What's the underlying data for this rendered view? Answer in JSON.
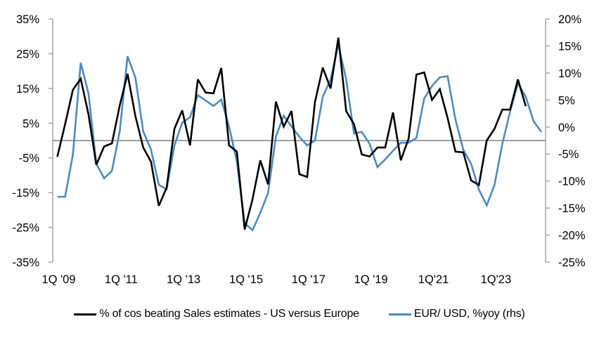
{
  "chart_data": {
    "type": "line",
    "title": "",
    "xlabel": "",
    "ylabel": "",
    "y2label": "",
    "grid": false,
    "legend_position": "bottom",
    "x_tick_labels": [
      "1Q '09",
      "1Q '11",
      "1Q '13",
      "1Q '15",
      "1Q '17",
      "1Q '19",
      "1Q'21",
      "1Q'23"
    ],
    "left_axis": {
      "ylim": [
        -35,
        35
      ],
      "ticks": [
        35,
        25,
        15,
        5,
        -5,
        -15,
        -25,
        -35
      ],
      "tick_labels": [
        "35%",
        "25%",
        "15%",
        "5%",
        "-5%",
        "-15%",
        "-25%",
        "-35%"
      ]
    },
    "right_axis": {
      "ylim": [
        -25,
        20
      ],
      "ticks": [
        20,
        15,
        10,
        5,
        0,
        -5,
        -10,
        -15,
        -20,
        -25
      ],
      "tick_labels": [
        "20%",
        "15%",
        "10%",
        "5%",
        "0%",
        "-5%",
        "-10%",
        "-15%",
        "-20%",
        "-25%"
      ]
    },
    "reference_line": {
      "axis": "left",
      "value": 0,
      "color": "#808080"
    },
    "x": [
      "1Q09",
      "2Q09",
      "3Q09",
      "4Q09",
      "1Q10",
      "2Q10",
      "3Q10",
      "4Q10",
      "1Q11",
      "2Q11",
      "3Q11",
      "4Q11",
      "1Q12",
      "2Q12",
      "3Q12",
      "4Q12",
      "1Q13",
      "2Q13",
      "3Q13",
      "4Q13",
      "1Q14",
      "2Q14",
      "3Q14",
      "4Q14",
      "1Q15",
      "2Q15",
      "3Q15",
      "4Q15",
      "1Q16",
      "2Q16",
      "3Q16",
      "4Q16",
      "1Q17",
      "2Q17",
      "3Q17",
      "4Q17",
      "1Q18",
      "2Q18",
      "3Q18",
      "4Q18",
      "1Q19",
      "2Q19",
      "3Q19",
      "4Q19",
      "1Q20",
      "2Q20",
      "3Q20",
      "4Q20",
      "1Q21",
      "2Q21",
      "3Q21",
      "4Q21",
      "1Q22",
      "2Q22",
      "3Q22",
      "4Q22",
      "1Q23",
      "2Q23",
      "3Q23",
      "4Q23",
      "1Q24",
      "2Q24",
      "3Q24"
    ],
    "series": [
      {
        "name": "% of cos beating Sales estimates - US versus Europe",
        "axis": "left",
        "color": "#000000",
        "values": [
          -4.7,
          4.7,
          14.6,
          17.8,
          7.5,
          -7.0,
          -1.7,
          -0.8,
          10.1,
          19.2,
          7.1,
          -2.0,
          -6.1,
          -18.8,
          -13.6,
          3.4,
          8.7,
          -1.4,
          17.6,
          13.8,
          13.6,
          20.9,
          -1.4,
          -3.2,
          -25.6,
          -17.0,
          -5.7,
          -12.6,
          11.2,
          4.0,
          8.5,
          -9.7,
          -10.5,
          11.1,
          21.0,
          15.0,
          29.6,
          8.5,
          4.7,
          -4.0,
          -4.6,
          -2.0,
          -2.0,
          8.1,
          -5.7,
          0.6,
          19.0,
          19.6,
          11.7,
          14.8,
          6.5,
          -3.2,
          -3.4,
          -11.5,
          -12.8,
          0.0,
          3.4,
          8.9,
          8.9,
          17.6,
          9.9,
          null,
          null
        ]
      },
      {
        "name": "EUR/ USD, %yoy (rhs)",
        "axis": "right",
        "color": "#4a8bc2",
        "values": [
          -12.9,
          -12.9,
          -5.1,
          11.9,
          6.2,
          -6.8,
          -9.5,
          -8.1,
          -0.8,
          13.1,
          9.2,
          -0.8,
          -4.2,
          -10.7,
          -11.5,
          -3.4,
          0.8,
          1.8,
          5.9,
          4.9,
          3.9,
          5.1,
          0.1,
          -6.4,
          -17.8,
          -19.1,
          -15.9,
          -12.2,
          -1.8,
          2.1,
          0.1,
          -1.8,
          -3.4,
          -2.5,
          5.6,
          8.8,
          15.3,
          8.8,
          -1.2,
          -0.9,
          -3.1,
          -7.4,
          -6.0,
          -4.4,
          -2.9,
          -2.9,
          -2.0,
          5.3,
          7.6,
          9.2,
          9.4,
          1.4,
          -4.2,
          -6.8,
          -11.6,
          -14.5,
          -10.7,
          -3.1,
          2.9,
          8.1,
          5.6,
          1.1,
          -0.9
        ]
      }
    ]
  }
}
